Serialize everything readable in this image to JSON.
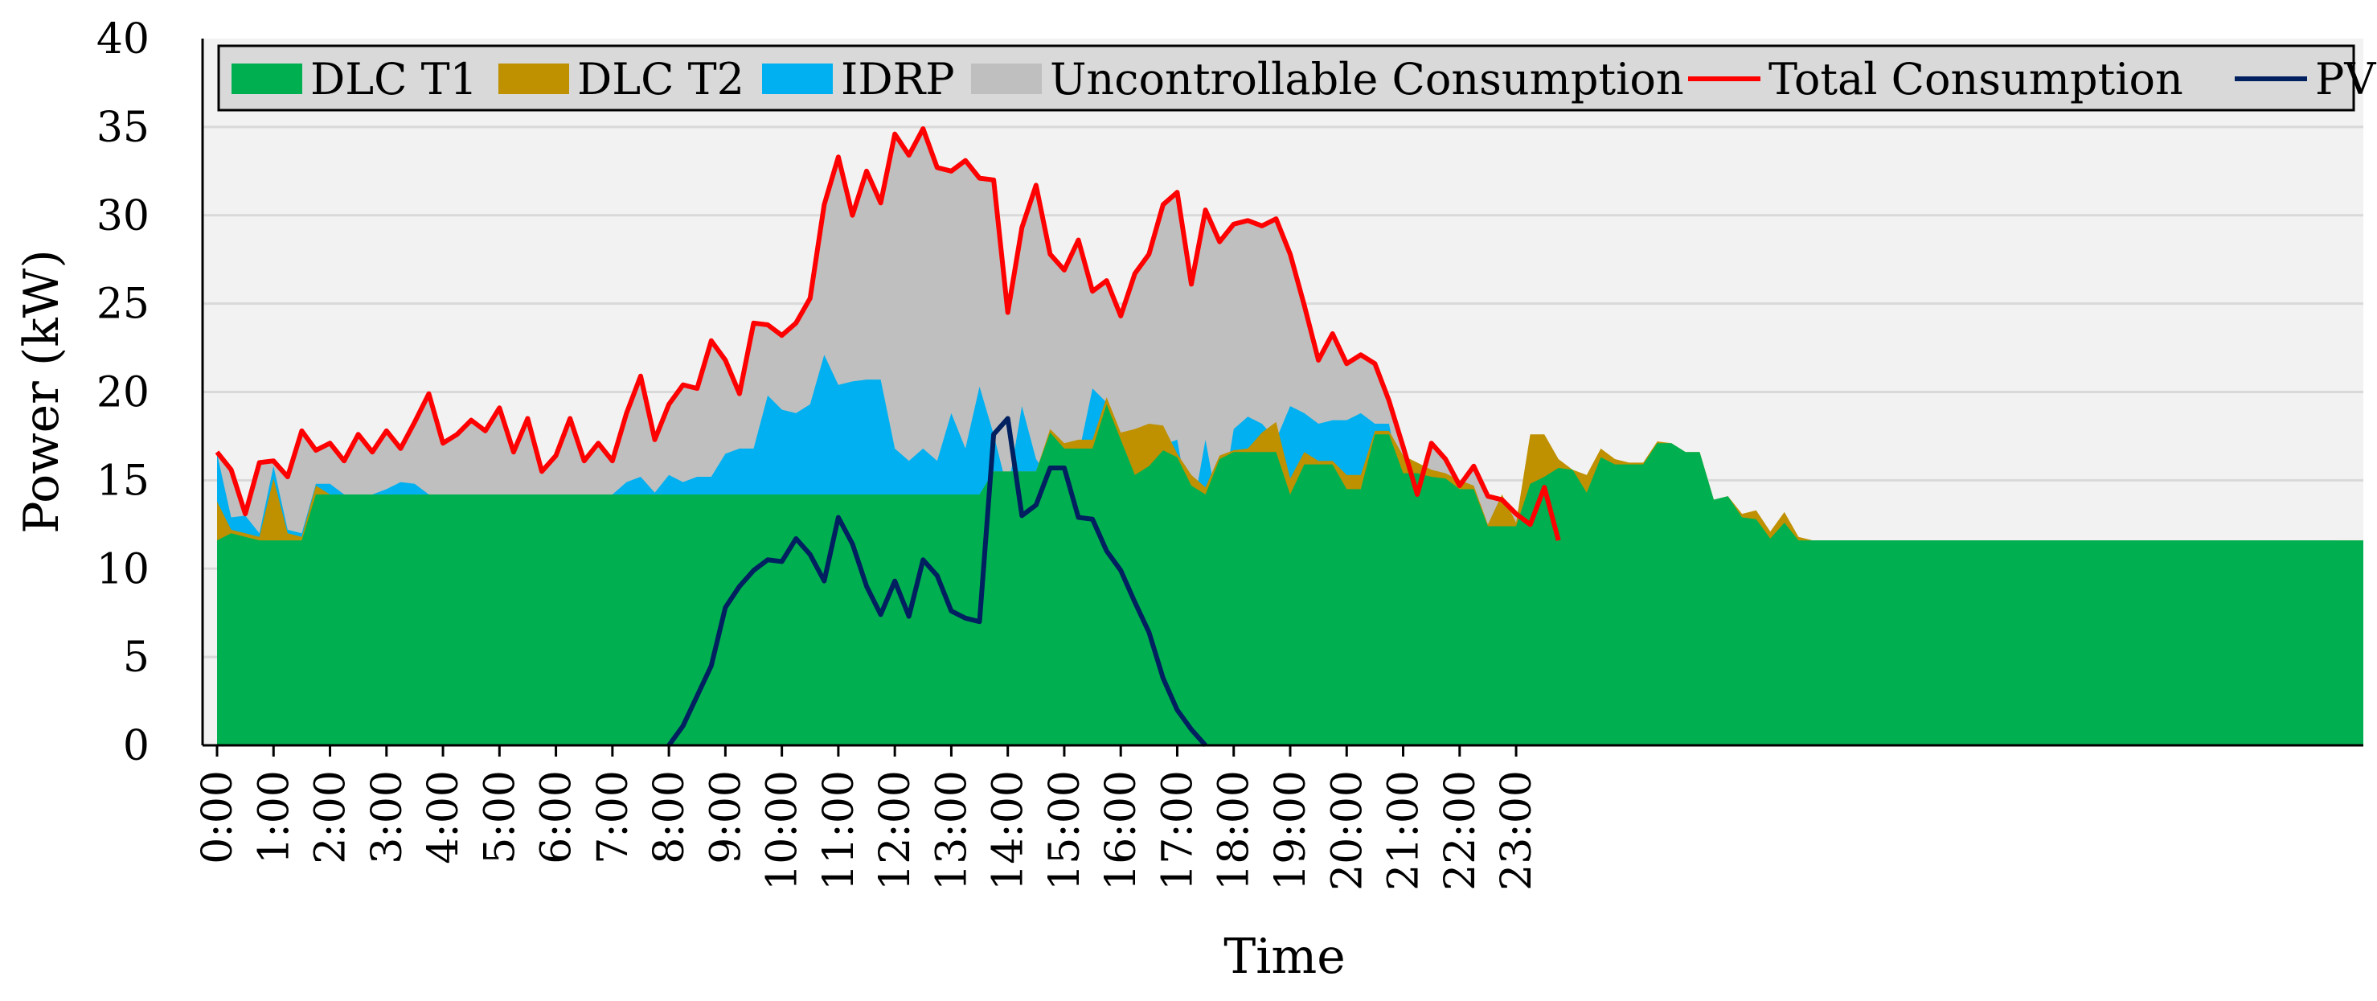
{
  "chart_data": {
    "type": "area",
    "title": "",
    "xlabel": "Time",
    "ylabel": "Power (kW)",
    "ylim": [
      0,
      40
    ],
    "yticks": [
      0,
      5,
      10,
      15,
      20,
      25,
      30,
      35,
      40
    ],
    "grid": true,
    "legend_position": "top",
    "x_step_minutes": 15,
    "x_start": "0:00",
    "x_tick_labels": [
      "0:00",
      "1:00",
      "2:00",
      "3:00",
      "4:00",
      "5:00",
      "6:00",
      "7:00",
      "8:00",
      "9:00",
      "10:00",
      "11:00",
      "12:00",
      "13:00",
      "14:00",
      "15:00",
      "16:00",
      "17:00",
      "18:00",
      "19:00",
      "20:00",
      "21:00",
      "22:00",
      "23:00"
    ],
    "colors": {
      "dlc_t1": "#00b050",
      "dlc_t2": "#bf9000",
      "idrp": "#00b0f0",
      "uncontrollable": "#bfbfbf",
      "total": "#ff0000",
      "pv": "#002060",
      "plot_bg": "#f2f2f2",
      "grid": "#d9d9d9"
    },
    "legend": [
      {
        "key": "dlc_t1",
        "label": "DLC T1",
        "kind": "area"
      },
      {
        "key": "dlc_t2",
        "label": "DLC T2",
        "kind": "area"
      },
      {
        "key": "idrp",
        "label": "IDRP",
        "kind": "area"
      },
      {
        "key": "uncontrollable",
        "label": "Uncontrollable Consumption",
        "kind": "area"
      },
      {
        "key": "total",
        "label": "Total Consumption",
        "kind": "line"
      },
      {
        "key": "pv",
        "label": "PV",
        "kind": "line"
      }
    ],
    "series": [
      {
        "key": "dlc_t1",
        "name": "DLC T1",
        "values": [
          11.6,
          12,
          11.8,
          11.6,
          11.6,
          11.6,
          11.6,
          14.2,
          14.2,
          14.2,
          14.2,
          14.2,
          14.2,
          14.2,
          14.2,
          14.2,
          14.2,
          14.2,
          14.2,
          14.2,
          14.2,
          14.2,
          14.2,
          14.2,
          14.2,
          14.2,
          14.2,
          14.2,
          14.2,
          14.2,
          14.2,
          14.2,
          14.2,
          14.2,
          14.2,
          14.2,
          14.2,
          14.2,
          14.2,
          14.2,
          14.2,
          14.2,
          14.2,
          14.2,
          14.2,
          14.2,
          14.2,
          14.2,
          14.2,
          14.2,
          14.2,
          14.2,
          14.2,
          14.2,
          14.2,
          15.5,
          15.5,
          15.5,
          15.5,
          17.7,
          16.8,
          16.8,
          16.8,
          19.3,
          17.3,
          15.3,
          15.8,
          16.7,
          16.3,
          14.7,
          14.2,
          16.2,
          16.6,
          16.6,
          16.6,
          16.6,
          14.2,
          15.9,
          15.9,
          15.9,
          14.5,
          14.5,
          17.6,
          17.6,
          15.4,
          15.4,
          15.2,
          15.1,
          14.5,
          14.5,
          12.4,
          12.4,
          12.4,
          14.8,
          15.2,
          15.7,
          15.6,
          14.3,
          16.3,
          15.9,
          15.9,
          15.9,
          17.1,
          17.1,
          16.6,
          16.6,
          13.9,
          14.1,
          12.9,
          12.8,
          11.7,
          12.6,
          11.6,
          11.6,
          11.6,
          11.6,
          11.6,
          11.6,
          11.6,
          11.6,
          11.6,
          11.6,
          11.6,
          11.6,
          11.6,
          11.6,
          11.6,
          11.6,
          11.6,
          11.6,
          11.6,
          11.6,
          11.6,
          11.6,
          11.6,
          11.6,
          11.6,
          11.6,
          11.6,
          11.6,
          11.6,
          11.6,
          11.6,
          11.6,
          11.6,
          11.6,
          11.6,
          11.6,
          11.6,
          11.6,
          11.6,
          11.6,
          11.6
        ]
      },
      {
        "key": "dlc_t2",
        "name": "DLC T2",
        "values": [
          13.8,
          12.2,
          12,
          11.8,
          15.1,
          12,
          11.8,
          14.7,
          14.2,
          14.2,
          14.2,
          14.2,
          14.2,
          14.2,
          14.2,
          14.2,
          14.2,
          14.2,
          14.2,
          14.2,
          14.2,
          14.2,
          14.2,
          14.2,
          14.2,
          14.2,
          14.2,
          14.2,
          14.2,
          14.2,
          14.2,
          14.2,
          14.2,
          14.2,
          14.2,
          14.2,
          14.2,
          14.2,
          14.2,
          14.2,
          14.2,
          14.2,
          14.2,
          14.2,
          14.2,
          14.2,
          14.2,
          14.2,
          14.2,
          14.2,
          14.2,
          14.2,
          14.2,
          14.2,
          14.2,
          15.5,
          15.5,
          15.5,
          15.5,
          17.9,
          17.1,
          17.3,
          17.3,
          19.7,
          17.7,
          17.9,
          18.2,
          18.1,
          16.5,
          15.3,
          14.6,
          16.4,
          16.7,
          16.8,
          17.7,
          18.3,
          15.1,
          16.6,
          16.1,
          16.1,
          15.3,
          15.3,
          17.8,
          17.8,
          16.4,
          16,
          15.6,
          15.4,
          15,
          14.7,
          12.5,
          14.2,
          12.6,
          17.6,
          17.6,
          16.2,
          15.6,
          15.3,
          16.8,
          16.2,
          16,
          16,
          17.2,
          17.1,
          16.6,
          16.6,
          13.9,
          14.1,
          13.1,
          13.3,
          12.1,
          13.2,
          11.8,
          11.6,
          11.6,
          11.6,
          11.6,
          11.6,
          11.6,
          11.6,
          11.6,
          11.6,
          11.6,
          11.6,
          11.6,
          11.6,
          11.6,
          11.6,
          11.6,
          11.6,
          11.6,
          11.6,
          11.6,
          11.6,
          11.6,
          11.6,
          11.6,
          11.6,
          11.6,
          11.6,
          11.6,
          11.6,
          11.6,
          11.6,
          11.6,
          11.6,
          11.6,
          11.6,
          11.6,
          11.6,
          11.6,
          11.6,
          11.6
        ]
      },
      {
        "key": "idrp",
        "name": "IDRP",
        "values": [
          16.5,
          12.9,
          13,
          12,
          15.8,
          12.2,
          12,
          14.8,
          14.8,
          14.2,
          14.2,
          14.2,
          14.5,
          14.9,
          14.8,
          14.2,
          14.2,
          14.2,
          14.2,
          14.2,
          14.2,
          14.2,
          14.2,
          14.2,
          14.2,
          14.2,
          14.2,
          14.2,
          14.2,
          14.9,
          15.2,
          14.3,
          15.3,
          14.9,
          15.2,
          15.2,
          16.5,
          16.8,
          16.8,
          19.8,
          19,
          18.8,
          19.3,
          22.1,
          20.4,
          20.6,
          20.7,
          20.7,
          16.8,
          16.1,
          16.8,
          16.1,
          18.8,
          16.8,
          20.3,
          17.6,
          14.4,
          19.2,
          16.2,
          15.1,
          16.9,
          16.4,
          20.2,
          19.4,
          16.9,
          16.4,
          15.2,
          17,
          17.3,
          12.8,
          17.3,
          12.9,
          17.9,
          18.6,
          18.2,
          17.3,
          19.2,
          18.8,
          18.2,
          18.4,
          18.4,
          18.8,
          18.2,
          18.2,
          14.1,
          14.1,
          13.3,
          14.3,
          13.5,
          13.5,
          12.1,
          12.1,
          12.1,
          11.6,
          11.6,
          11.6,
          11.6,
          11.6,
          11.6,
          11.6,
          11.6,
          11.6,
          11.6,
          11.6,
          11.6,
          11.6,
          11.6,
          11.6,
          11.6,
          11.6,
          11.6,
          11.6,
          11.6,
          11.6,
          11.6,
          11.6,
          11.6,
          11.6,
          11.6,
          11.6,
          11.6,
          11.6,
          11.6,
          11.6,
          11.6,
          11.6,
          11.6,
          11.6,
          11.6,
          11.6,
          11.6,
          11.6,
          11.6,
          11.6,
          11.6,
          11.6,
          11.6,
          11.6,
          11.6,
          11.6,
          11.6,
          11.6,
          11.6,
          11.6,
          11.6,
          11.6,
          11.6,
          11.6,
          11.6,
          11.6,
          11.6
        ]
      },
      {
        "key": "total",
        "name": "Total Consumption",
        "values": [
          16.6,
          15.6,
          13.1,
          16,
          16.1,
          15.2,
          17.8,
          16.7,
          17.1,
          16.1,
          17.6,
          16.6,
          17.8,
          16.8,
          18.3,
          19.9,
          17.1,
          17.6,
          18.4,
          17.8,
          19.1,
          16.6,
          18.5,
          15.5,
          16.4,
          18.5,
          16.1,
          17.1,
          16.1,
          18.8,
          20.9,
          17.3,
          19.3,
          20.4,
          20.2,
          22.9,
          21.8,
          19.9,
          23.9,
          23.8,
          23.2,
          23.9,
          25.3,
          30.6,
          33.3,
          30,
          32.5,
          30.7,
          34.6,
          33.4,
          34.9,
          32.7,
          32.5,
          33.1,
          32.1,
          32,
          24.5,
          29.3,
          31.7,
          27.8,
          26.9,
          28.6,
          25.7,
          26.3,
          24.3,
          26.7,
          27.8,
          30.6,
          31.3,
          26.1,
          30.3,
          28.5,
          29.5,
          29.7,
          29.4,
          29.8,
          27.8,
          24.9,
          21.8,
          23.3,
          21.6,
          22.1,
          21.6,
          19.5,
          16.9,
          14.2,
          17.1,
          16.2,
          14.7,
          15.8,
          14.1,
          13.9,
          13.1,
          12.5,
          14.6,
          11.6
        ]
      },
      {
        "key": "pv",
        "name": "PV",
        "values": [
          0,
          0,
          0,
          0,
          0,
          0,
          0,
          0,
          0,
          0,
          0,
          0,
          0,
          0,
          0,
          0,
          0,
          0,
          0,
          0,
          0,
          0,
          0,
          0,
          0,
          0,
          0,
          0,
          0,
          0,
          0,
          0,
          0,
          1.1,
          2.8,
          4.5,
          7.8,
          9,
          9.9,
          10.5,
          10.4,
          11.7,
          10.8,
          9.3,
          12.9,
          11.4,
          9,
          7.4,
          9.3,
          7.3,
          10.5,
          9.6,
          7.6,
          7.2,
          7,
          17.6,
          18.5,
          13,
          13.6,
          15.7,
          15.7,
          12.9,
          12.8,
          11,
          9.9,
          8.1,
          6.4,
          3.8,
          2,
          0.9,
          0,
          0,
          0,
          0,
          0,
          0,
          0,
          0,
          0,
          0,
          0,
          0,
          0,
          0,
          0,
          0,
          0,
          0,
          0,
          0,
          0,
          0,
          0,
          0,
          0,
          0
        ]
      }
    ]
  }
}
